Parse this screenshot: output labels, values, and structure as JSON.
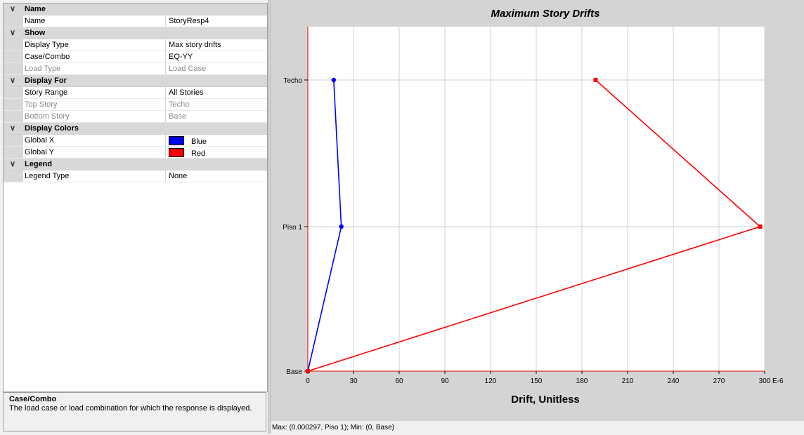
{
  "properties": {
    "categories": [
      {
        "label": "Name",
        "rows": [
          {
            "name": "Name",
            "value": "StoryResp4",
            "disabled": false
          }
        ]
      },
      {
        "label": "Show",
        "rows": [
          {
            "name": "Display Type",
            "value": "Max story drifts",
            "disabled": false
          },
          {
            "name": "Case/Combo",
            "value": "EQ-YY",
            "disabled": false
          },
          {
            "name": "Load Type",
            "value": "Load Case",
            "disabled": true
          }
        ]
      },
      {
        "label": "Display For",
        "rows": [
          {
            "name": "Story Range",
            "value": "All Stories",
            "disabled": false
          },
          {
            "name": "Top Story",
            "value": "Techo",
            "disabled": true
          },
          {
            "name": "Bottom Story",
            "value": "Base",
            "disabled": true
          }
        ]
      },
      {
        "label": "Display Colors",
        "rows": [
          {
            "name": "Global X",
            "value": "Blue",
            "swatch": "#0000ff",
            "disabled": false
          },
          {
            "name": "Global Y",
            "value": "Red",
            "swatch": "#ff0000",
            "disabled": false
          }
        ]
      },
      {
        "label": "Legend",
        "rows": [
          {
            "name": "Legend Type",
            "value": "None",
            "disabled": false
          }
        ]
      }
    ]
  },
  "help": {
    "title": "Case/Combo",
    "text": "The load case or load combination for which the response is displayed."
  },
  "status_text": "Max: (0.000297, Piso 1);   Min: (0, Base)",
  "icons": {
    "expand": "chevron-down-icon"
  },
  "chart_data": {
    "type": "line",
    "title": "Maximum Story Drifts",
    "xlabel": "Drift, Unitless",
    "x_unit": "E-6",
    "xlim": [
      0,
      300
    ],
    "x_ticks": [
      0,
      30,
      60,
      90,
      120,
      150,
      180,
      210,
      240,
      270,
      300
    ],
    "y_categories": [
      "Base",
      "Piso 1",
      "Techo"
    ],
    "grid": true,
    "series": [
      {
        "name": "Global X",
        "color": "#0000ff",
        "marker": "circle",
        "x": [
          0,
          22,
          17
        ],
        "y": [
          "Base",
          "Piso 1",
          "Techo"
        ]
      },
      {
        "name": "Global Y",
        "color": "#ff0000",
        "marker": "square",
        "x": [
          0,
          297,
          189
        ],
        "y": [
          "Base",
          "Piso 1",
          "Techo"
        ]
      }
    ]
  }
}
